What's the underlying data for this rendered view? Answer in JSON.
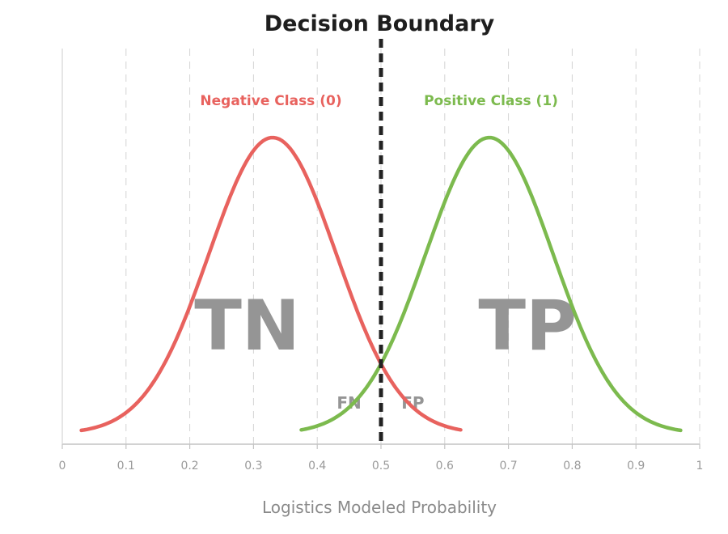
{
  "chart_data": {
    "type": "line",
    "title": "Decision Boundary",
    "xlabel": "Logistics Modeled Probability",
    "ylabel": "",
    "xlim": [
      0,
      1
    ],
    "x_ticks": [
      "0",
      "0.1",
      "0.2",
      "0.3",
      "0.4",
      "0.5",
      "0.6",
      "0.7",
      "0.8",
      "0.9",
      "1"
    ],
    "grid": "vertical dashed",
    "decision_boundary": 0.5,
    "series": [
      {
        "name": "Negative Class (0)",
        "color": "#e8625e",
        "mean": 0.33,
        "sd": 0.1,
        "x_range": [
          0.03,
          0.625
        ]
      },
      {
        "name": "Positive Class (1)",
        "color": "#7cba4e",
        "mean": 0.67,
        "sd": 0.1,
        "x_range": [
          0.375,
          0.97
        ]
      }
    ],
    "regions": [
      {
        "label": "TN",
        "x": 0.29
      },
      {
        "label": "TP",
        "x": 0.73
      },
      {
        "label": "FN",
        "x": 0.45
      },
      {
        "label": "FP",
        "x": 0.55
      }
    ]
  }
}
